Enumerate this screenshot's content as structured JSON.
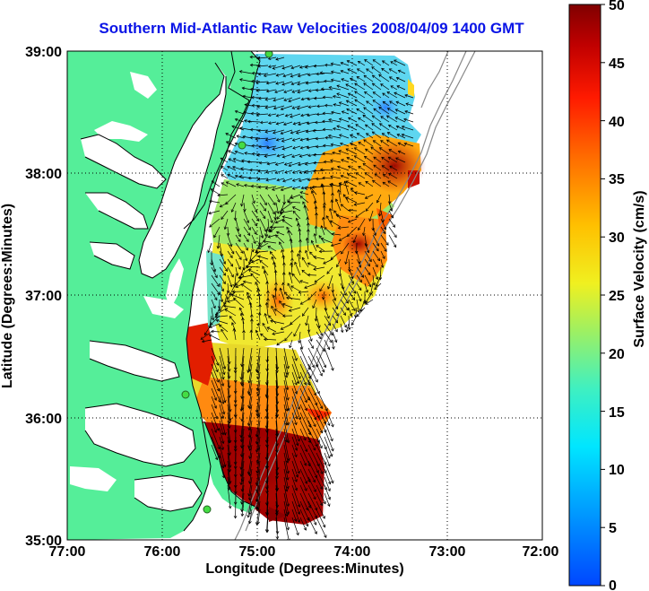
{
  "title": "Southern Mid-Atlantic Raw Velocities 2008/04/09 1400 GMT",
  "x_axis": {
    "label": "Longitude (Degrees:Minutes)",
    "ticks": [
      "77:00",
      "76:00",
      "75:00",
      "74:00",
      "73:00",
      "72:00"
    ]
  },
  "y_axis": {
    "label": "Latitude (Degrees:Minutes)",
    "ticks": [
      "39:00",
      "38:00",
      "37:00",
      "36:00",
      "35:00"
    ]
  },
  "colorbar": {
    "label": "Surface Velocity (cm/s)",
    "ticks": [
      "50",
      "45",
      "40",
      "35",
      "30",
      "25",
      "20",
      "15",
      "10",
      "5",
      "0"
    ]
  },
  "colors": {
    "title": "#0a14e6",
    "land": "#55ee99",
    "station": "#44dd44",
    "vector": "#000000",
    "bathymetry": "#888888"
  },
  "chart_data": {
    "type": "heatmap",
    "title": "Southern Mid-Atlantic Raw Velocities 2008/04/09 1400 GMT",
    "xlabel": "Longitude (Degrees:Minutes)",
    "ylabel": "Latitude (Degrees:Minutes)",
    "xlim": [
      -77,
      -72
    ],
    "ylim": [
      35,
      39
    ],
    "colorbar_range": [
      0,
      50
    ],
    "colorbar_units": "cm/s",
    "grid": true
  }
}
